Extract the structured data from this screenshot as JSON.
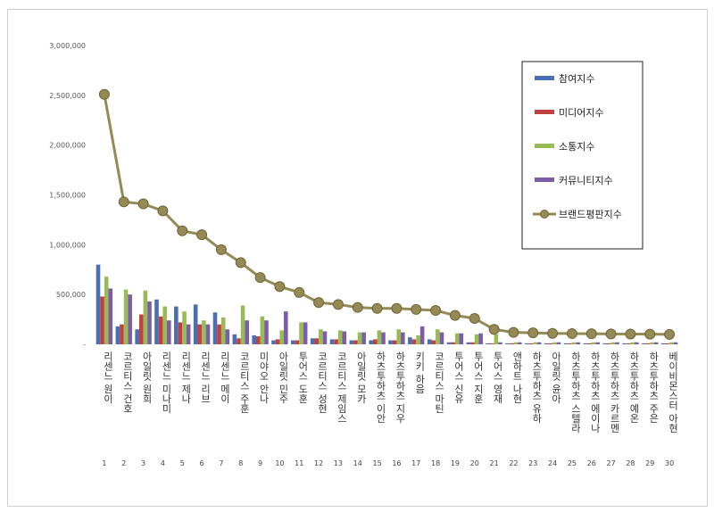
{
  "chart_data": {
    "type": "bar",
    "ylim": [
      0,
      3000000
    ],
    "yticks": [
      "-",
      "500,000",
      "1,000,000",
      "1,500,000",
      "2,000,000",
      "2,500,000",
      "3,000,000"
    ],
    "ranks": [
      "1",
      "2",
      "3",
      "4",
      "5",
      "6",
      "7",
      "8",
      "9",
      "10",
      "11",
      "12",
      "13",
      "14",
      "15",
      "16",
      "17",
      "18",
      "19",
      "20",
      "21",
      "22",
      "23",
      "24",
      "25",
      "26",
      "27",
      "28",
      "29",
      "30"
    ],
    "categories": [
      "리센느 원이",
      "코르티스 건호",
      "아일릿 원희",
      "리센느 미나미",
      "리센느 제나",
      "리센느 리브",
      "리센느 메이",
      "코르티스 주훈",
      "미야오 안나",
      "아일릿 민주",
      "투어스 도훈",
      "코르티스 성현",
      "코르티스 제임스",
      "아일릿 모카",
      "하츠투하츠 이안",
      "하츠투하츠 지우",
      "키키 하음",
      "코르티스 마틴",
      "투어스 신유",
      "투어스 지훈",
      "투어스 영재",
      "앤하트 나현",
      "하츠투하츠 유하",
      "아일릿 윤아",
      "하츠투하츠 스텔라",
      "하츠투하츠 에이나",
      "하츠투하츠 카르멘",
      "하츠투하츠 예온",
      "하츠투하츠 주은",
      "베이비몬스터 아현"
    ],
    "legend_position": "top-right",
    "series": [
      {
        "name": "참여지수",
        "color": "#4a6fb5",
        "kind": "bar",
        "values": [
          800000,
          180000,
          150000,
          450000,
          380000,
          400000,
          320000,
          100000,
          90000,
          40000,
          40000,
          60000,
          50000,
          40000,
          40000,
          40000,
          70000,
          50000,
          20000,
          20000,
          10000,
          10000,
          10000,
          10000,
          10000,
          10000,
          10000,
          10000,
          10000,
          10000
        ]
      },
      {
        "name": "미디어지수",
        "color": "#c0413e",
        "kind": "bar",
        "values": [
          480000,
          200000,
          300000,
          280000,
          220000,
          200000,
          200000,
          60000,
          80000,
          50000,
          40000,
          60000,
          50000,
          40000,
          50000,
          40000,
          50000,
          40000,
          20000,
          20000,
          10000,
          10000,
          10000,
          10000,
          10000,
          10000,
          10000,
          10000,
          10000,
          10000
        ]
      },
      {
        "name": "소통지수",
        "color": "#99bb55",
        "kind": "bar",
        "values": [
          680000,
          550000,
          540000,
          380000,
          330000,
          240000,
          270000,
          390000,
          280000,
          140000,
          220000,
          150000,
          140000,
          120000,
          140000,
          150000,
          90000,
          150000,
          110000,
          100000,
          100000,
          20000,
          20000,
          20000,
          20000,
          20000,
          20000,
          20000,
          20000,
          20000
        ]
      },
      {
        "name": "커뮤니티지수",
        "color": "#7b5ea7",
        "kind": "bar",
        "values": [
          560000,
          500000,
          430000,
          240000,
          200000,
          200000,
          150000,
          240000,
          240000,
          330000,
          220000,
          130000,
          130000,
          120000,
          120000,
          120000,
          180000,
          120000,
          110000,
          110000,
          20000,
          20000,
          20000,
          20000,
          20000,
          20000,
          20000,
          20000,
          20000,
          20000
        ]
      },
      {
        "name": "브랜드평판지수",
        "color": "#938a55",
        "kind": "line",
        "values": [
          2510000,
          1430000,
          1410000,
          1340000,
          1140000,
          1100000,
          950000,
          820000,
          670000,
          580000,
          520000,
          420000,
          400000,
          370000,
          360000,
          360000,
          350000,
          340000,
          290000,
          260000,
          150000,
          120000,
          115000,
          110000,
          108000,
          106000,
          104000,
          103000,
          102000,
          100000
        ]
      }
    ]
  }
}
